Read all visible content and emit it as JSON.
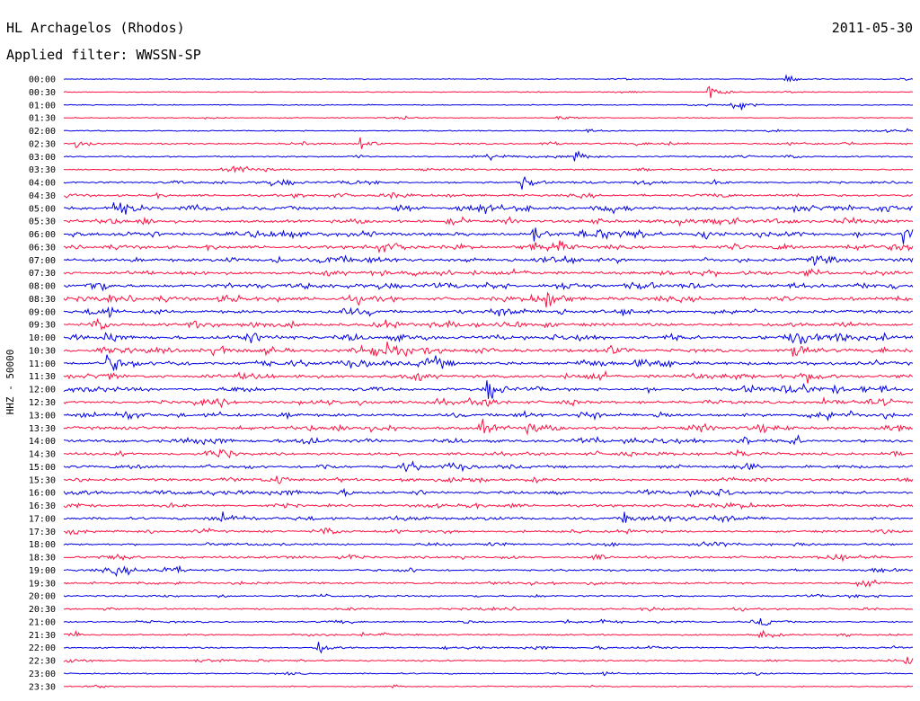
{
  "header": {
    "station": "HL Archagelos (Rhodos)",
    "date": "2011-05-30",
    "filter": "Applied filter: WWSSN-SP"
  },
  "chart_data": {
    "type": "seismogram",
    "title": "HL Archagelos (Rhodos)",
    "channel_label": "HHZ - 50000",
    "row_labels": [
      "00:00",
      "00:30",
      "01:00",
      "01:30",
      "02:00",
      "02:30",
      "03:00",
      "03:30",
      "04:00",
      "04:30",
      "05:00",
      "05:30",
      "06:00",
      "06:30",
      "07:00",
      "07:30",
      "08:00",
      "08:30",
      "09:00",
      "09:30",
      "10:00",
      "10:30",
      "11:00",
      "11:30",
      "12:00",
      "12:30",
      "13:00",
      "13:30",
      "14:00",
      "14:30",
      "15:00",
      "15:30",
      "16:00",
      "16:30",
      "17:00",
      "17:30",
      "18:00",
      "18:30",
      "19:00",
      "19:30",
      "20:00",
      "20:30",
      "21:00",
      "21:30",
      "22:00",
      "22:30",
      "23:00",
      "23:30"
    ],
    "colors": {
      "even_rows": "#0000e6",
      "odd_rows": "#ff1040"
    },
    "row_activity": [
      0.08,
      0.08,
      0.08,
      0.08,
      0.16,
      0.3,
      0.25,
      0.3,
      0.45,
      0.55,
      0.85,
      0.75,
      0.9,
      0.8,
      0.8,
      0.75,
      0.85,
      0.9,
      0.8,
      0.85,
      0.9,
      0.9,
      0.95,
      0.85,
      0.85,
      0.75,
      0.75,
      0.8,
      0.75,
      0.65,
      0.7,
      0.65,
      0.7,
      0.6,
      0.65,
      0.5,
      0.45,
      0.55,
      0.5,
      0.45,
      0.35,
      0.35,
      0.3,
      0.3,
      0.3,
      0.3,
      0.2,
      0.12
    ],
    "events": [
      {
        "row": 0,
        "t": 0.85,
        "amp": 8
      },
      {
        "row": 1,
        "t": 0.76,
        "amp": 18
      },
      {
        "row": 2,
        "t": 0.79,
        "amp": 14
      },
      {
        "row": 3,
        "t": 0.58,
        "amp": 5
      },
      {
        "row": 5,
        "t": 0.01,
        "amp": 12
      },
      {
        "row": 5,
        "t": 0.35,
        "amp": 12
      },
      {
        "row": 6,
        "t": 0.6,
        "amp": 10
      },
      {
        "row": 8,
        "t": 0.54,
        "amp": 12
      },
      {
        "row": 10,
        "t": 0.06,
        "amp": 15
      },
      {
        "row": 12,
        "t": 0.55,
        "amp": 15
      },
      {
        "row": 12,
        "t": 0.99,
        "amp": 22
      },
      {
        "row": 16,
        "t": 0.5,
        "amp": 12
      },
      {
        "row": 17,
        "t": 0.57,
        "amp": 14
      },
      {
        "row": 20,
        "t": 0.05,
        "amp": 15
      },
      {
        "row": 21,
        "t": 0.86,
        "amp": 14
      },
      {
        "row": 22,
        "t": 0.05,
        "amp": 20
      },
      {
        "row": 24,
        "t": 0.5,
        "amp": 20
      },
      {
        "row": 27,
        "t": 0.49,
        "amp": 15
      },
      {
        "row": 34,
        "t": 0.66,
        "amp": 14
      },
      {
        "row": 42,
        "t": 0.82,
        "amp": 14
      },
      {
        "row": 43,
        "t": 0.82,
        "amp": 10
      },
      {
        "row": 44,
        "t": 0.3,
        "amp": 12
      },
      {
        "row": 45,
        "t": 0.99,
        "amp": 14
      }
    ]
  }
}
